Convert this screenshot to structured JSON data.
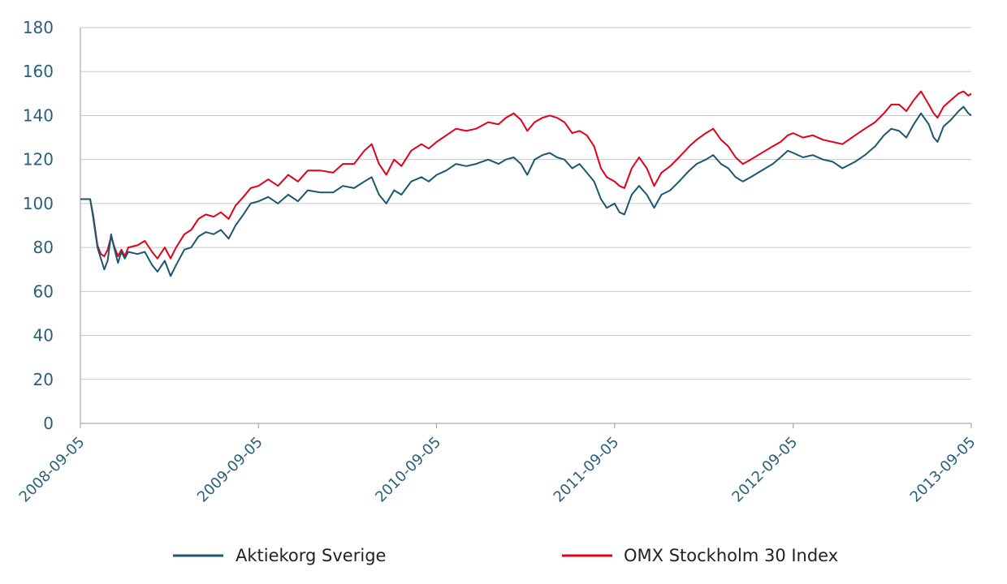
{
  "chart_data": {
    "type": "line",
    "ylim": [
      0,
      180
    ],
    "yticks": [
      0,
      20,
      40,
      60,
      80,
      100,
      120,
      140,
      160,
      180
    ],
    "y_tick_labels": [
      "0",
      "20",
      "40",
      "60",
      "80",
      "100",
      "120",
      "140",
      "160",
      "180"
    ],
    "x_tick_labels": [
      "2008-09-05",
      "2009-09-05",
      "2010-09-05",
      "2011-09-05",
      "2012-09-05",
      "2013-09-05"
    ],
    "xlim": [
      "2008-09-05",
      "2013-09-05"
    ],
    "grid": "horizontal",
    "legend_position": "bottom",
    "series": [
      {
        "name": "Aktiekorg Sverige",
        "color": "#1b5670",
        "points": [
          [
            "2008-09-05",
            102
          ],
          [
            "2008-09-25",
            102
          ],
          [
            "2008-10-01",
            94
          ],
          [
            "2008-10-10",
            80
          ],
          [
            "2008-10-17",
            75
          ],
          [
            "2008-10-24",
            70
          ],
          [
            "2008-10-31",
            74
          ],
          [
            "2008-11-07",
            86
          ],
          [
            "2008-11-14",
            79
          ],
          [
            "2008-11-21",
            73
          ],
          [
            "2008-11-28",
            78
          ],
          [
            "2008-12-05",
            75
          ],
          [
            "2008-12-12",
            78
          ],
          [
            "2008-12-31",
            77
          ],
          [
            "2009-01-15",
            78
          ],
          [
            "2009-01-30",
            72
          ],
          [
            "2009-02-10",
            69
          ],
          [
            "2009-02-25",
            74
          ],
          [
            "2009-03-09",
            67
          ],
          [
            "2009-03-20",
            72
          ],
          [
            "2009-04-06",
            79
          ],
          [
            "2009-04-20",
            80
          ],
          [
            "2009-05-05",
            85
          ],
          [
            "2009-05-20",
            87
          ],
          [
            "2009-06-05",
            86
          ],
          [
            "2009-06-20",
            88
          ],
          [
            "2009-07-06",
            84
          ],
          [
            "2009-07-20",
            90
          ],
          [
            "2009-08-05",
            95
          ],
          [
            "2009-08-20",
            100
          ],
          [
            "2009-09-05",
            101
          ],
          [
            "2009-09-25",
            103
          ],
          [
            "2009-10-15",
            100
          ],
          [
            "2009-11-05",
            104
          ],
          [
            "2009-11-25",
            101
          ],
          [
            "2009-12-15",
            106
          ],
          [
            "2010-01-10",
            105
          ],
          [
            "2010-02-05",
            105
          ],
          [
            "2010-02-25",
            108
          ],
          [
            "2010-03-20",
            107
          ],
          [
            "2010-04-10",
            110
          ],
          [
            "2010-04-25",
            112
          ],
          [
            "2010-05-10",
            104
          ],
          [
            "2010-05-25",
            100
          ],
          [
            "2010-06-10",
            106
          ],
          [
            "2010-06-25",
            104
          ],
          [
            "2010-07-15",
            110
          ],
          [
            "2010-08-05",
            112
          ],
          [
            "2010-08-20",
            110
          ],
          [
            "2010-09-05",
            113
          ],
          [
            "2010-09-25",
            115
          ],
          [
            "2010-10-15",
            118
          ],
          [
            "2010-11-05",
            117
          ],
          [
            "2010-11-25",
            118
          ],
          [
            "2010-12-20",
            120
          ],
          [
            "2011-01-10",
            118
          ],
          [
            "2011-01-25",
            120
          ],
          [
            "2011-02-10",
            121
          ],
          [
            "2011-02-25",
            118
          ],
          [
            "2011-03-10",
            113
          ],
          [
            "2011-03-25",
            120
          ],
          [
            "2011-04-10",
            122
          ],
          [
            "2011-04-25",
            123
          ],
          [
            "2011-05-10",
            121
          ],
          [
            "2011-05-25",
            120
          ],
          [
            "2011-06-10",
            116
          ],
          [
            "2011-06-25",
            118
          ],
          [
            "2011-07-10",
            114
          ],
          [
            "2011-07-25",
            110
          ],
          [
            "2011-08-08",
            102
          ],
          [
            "2011-08-20",
            98
          ],
          [
            "2011-09-05",
            100
          ],
          [
            "2011-09-15",
            96
          ],
          [
            "2011-09-25",
            95
          ],
          [
            "2011-10-10",
            104
          ],
          [
            "2011-10-25",
            108
          ],
          [
            "2011-11-10",
            104
          ],
          [
            "2011-11-25",
            98
          ],
          [
            "2011-12-10",
            104
          ],
          [
            "2011-12-28",
            106
          ],
          [
            "2012-01-15",
            110
          ],
          [
            "2012-02-05",
            115
          ],
          [
            "2012-02-20",
            118
          ],
          [
            "2012-03-10",
            120
          ],
          [
            "2012-03-25",
            122
          ],
          [
            "2012-04-10",
            118
          ],
          [
            "2012-04-25",
            116
          ],
          [
            "2012-05-10",
            112
          ],
          [
            "2012-05-25",
            110
          ],
          [
            "2012-06-10",
            112
          ],
          [
            "2012-06-25",
            114
          ],
          [
            "2012-07-10",
            116
          ],
          [
            "2012-07-25",
            118
          ],
          [
            "2012-08-10",
            121
          ],
          [
            "2012-08-25",
            124
          ],
          [
            "2012-09-05",
            123
          ],
          [
            "2012-09-25",
            121
          ],
          [
            "2012-10-15",
            122
          ],
          [
            "2012-11-05",
            120
          ],
          [
            "2012-11-25",
            119
          ],
          [
            "2012-12-15",
            116
          ],
          [
            "2013-01-10",
            119
          ],
          [
            "2013-01-30",
            122
          ],
          [
            "2013-02-20",
            126
          ],
          [
            "2013-03-10",
            131
          ],
          [
            "2013-03-25",
            134
          ],
          [
            "2013-04-10",
            133
          ],
          [
            "2013-04-25",
            130
          ],
          [
            "2013-05-10",
            136
          ],
          [
            "2013-05-25",
            141
          ],
          [
            "2013-06-10",
            136
          ],
          [
            "2013-06-20",
            130
          ],
          [
            "2013-06-28",
            128
          ],
          [
            "2013-07-10",
            135
          ],
          [
            "2013-07-25",
            138
          ],
          [
            "2013-08-10",
            142
          ],
          [
            "2013-08-20",
            144
          ],
          [
            "2013-08-30",
            141
          ],
          [
            "2013-09-05",
            140
          ]
        ]
      },
      {
        "name": "OMX Stockholm 30 Index",
        "color": "#e2001a",
        "points": [
          [
            "2008-09-05",
            102
          ],
          [
            "2008-09-25",
            102
          ],
          [
            "2008-10-01",
            95
          ],
          [
            "2008-10-10",
            81
          ],
          [
            "2008-10-17",
            77
          ],
          [
            "2008-10-24",
            76
          ],
          [
            "2008-10-31",
            79
          ],
          [
            "2008-11-07",
            85
          ],
          [
            "2008-11-14",
            80
          ],
          [
            "2008-11-21",
            76
          ],
          [
            "2008-11-28",
            79
          ],
          [
            "2008-12-05",
            76
          ],
          [
            "2008-12-12",
            80
          ],
          [
            "2008-12-31",
            81
          ],
          [
            "2009-01-15",
            83
          ],
          [
            "2009-01-30",
            78
          ],
          [
            "2009-02-10",
            75
          ],
          [
            "2009-02-25",
            80
          ],
          [
            "2009-03-09",
            75
          ],
          [
            "2009-03-20",
            80
          ],
          [
            "2009-04-06",
            86
          ],
          [
            "2009-04-20",
            88
          ],
          [
            "2009-05-05",
            93
          ],
          [
            "2009-05-20",
            95
          ],
          [
            "2009-06-05",
            94
          ],
          [
            "2009-06-20",
            96
          ],
          [
            "2009-07-06",
            93
          ],
          [
            "2009-07-20",
            99
          ],
          [
            "2009-08-05",
            103
          ],
          [
            "2009-08-20",
            107
          ],
          [
            "2009-09-05",
            108
          ],
          [
            "2009-09-25",
            111
          ],
          [
            "2009-10-15",
            108
          ],
          [
            "2009-11-05",
            113
          ],
          [
            "2009-11-25",
            110
          ],
          [
            "2009-12-15",
            115
          ],
          [
            "2010-01-10",
            115
          ],
          [
            "2010-02-05",
            114
          ],
          [
            "2010-02-25",
            118
          ],
          [
            "2010-03-20",
            118
          ],
          [
            "2010-04-10",
            124
          ],
          [
            "2010-04-25",
            127
          ],
          [
            "2010-05-10",
            118
          ],
          [
            "2010-05-25",
            113
          ],
          [
            "2010-06-10",
            120
          ],
          [
            "2010-06-25",
            117
          ],
          [
            "2010-07-15",
            124
          ],
          [
            "2010-08-05",
            127
          ],
          [
            "2010-08-20",
            125
          ],
          [
            "2010-09-05",
            128
          ],
          [
            "2010-09-25",
            131
          ],
          [
            "2010-10-15",
            134
          ],
          [
            "2010-11-05",
            133
          ],
          [
            "2010-11-25",
            134
          ],
          [
            "2010-12-20",
            137
          ],
          [
            "2011-01-10",
            136
          ],
          [
            "2011-01-25",
            139
          ],
          [
            "2011-02-10",
            141
          ],
          [
            "2011-02-25",
            138
          ],
          [
            "2011-03-10",
            133
          ],
          [
            "2011-03-25",
            137
          ],
          [
            "2011-04-10",
            139
          ],
          [
            "2011-04-25",
            140
          ],
          [
            "2011-05-10",
            139
          ],
          [
            "2011-05-25",
            137
          ],
          [
            "2011-06-10",
            132
          ],
          [
            "2011-06-25",
            133
          ],
          [
            "2011-07-10",
            131
          ],
          [
            "2011-07-25",
            126
          ],
          [
            "2011-08-08",
            116
          ],
          [
            "2011-08-20",
            112
          ],
          [
            "2011-09-05",
            110
          ],
          [
            "2011-09-15",
            108
          ],
          [
            "2011-09-25",
            107
          ],
          [
            "2011-10-10",
            116
          ],
          [
            "2011-10-25",
            121
          ],
          [
            "2011-11-10",
            116
          ],
          [
            "2011-11-25",
            108
          ],
          [
            "2011-12-10",
            114
          ],
          [
            "2011-12-28",
            117
          ],
          [
            "2012-01-15",
            121
          ],
          [
            "2012-02-05",
            126
          ],
          [
            "2012-02-20",
            129
          ],
          [
            "2012-03-10",
            132
          ],
          [
            "2012-03-25",
            134
          ],
          [
            "2012-04-10",
            129
          ],
          [
            "2012-04-25",
            126
          ],
          [
            "2012-05-10",
            121
          ],
          [
            "2012-05-25",
            118
          ],
          [
            "2012-06-10",
            120
          ],
          [
            "2012-06-25",
            122
          ],
          [
            "2012-07-10",
            124
          ],
          [
            "2012-07-25",
            126
          ],
          [
            "2012-08-10",
            128
          ],
          [
            "2012-08-25",
            131
          ],
          [
            "2012-09-05",
            132
          ],
          [
            "2012-09-25",
            130
          ],
          [
            "2012-10-15",
            131
          ],
          [
            "2012-11-05",
            129
          ],
          [
            "2012-11-25",
            128
          ],
          [
            "2012-12-15",
            127
          ],
          [
            "2013-01-10",
            131
          ],
          [
            "2013-01-30",
            134
          ],
          [
            "2013-02-20",
            137
          ],
          [
            "2013-03-10",
            141
          ],
          [
            "2013-03-25",
            145
          ],
          [
            "2013-04-10",
            145
          ],
          [
            "2013-04-25",
            142
          ],
          [
            "2013-05-10",
            147
          ],
          [
            "2013-05-25",
            151
          ],
          [
            "2013-06-10",
            145
          ],
          [
            "2013-06-20",
            141
          ],
          [
            "2013-06-28",
            139
          ],
          [
            "2013-07-10",
            144
          ],
          [
            "2013-07-25",
            147
          ],
          [
            "2013-08-10",
            150
          ],
          [
            "2013-08-20",
            151
          ],
          [
            "2013-08-30",
            149
          ],
          [
            "2013-09-05",
            150
          ]
        ]
      }
    ]
  }
}
